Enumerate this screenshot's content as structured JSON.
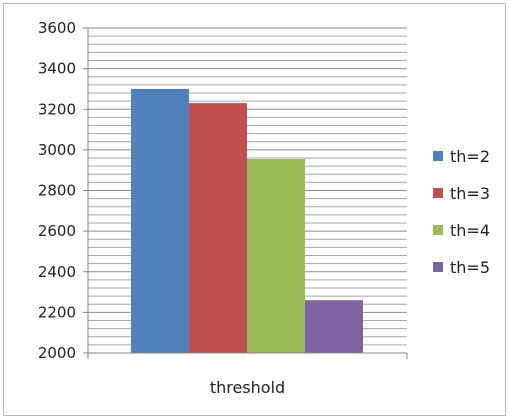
{
  "chart_data": {
    "type": "bar",
    "categories": [
      "threshold"
    ],
    "series": [
      {
        "name": "th=2",
        "values": [
          3300
        ],
        "color": "#4F81BD"
      },
      {
        "name": "th=3",
        "values": [
          3230
        ],
        "color": "#C0504D"
      },
      {
        "name": "th=4",
        "values": [
          2955
        ],
        "color": "#9BBB59"
      },
      {
        "name": "th=5",
        "values": [
          2260
        ],
        "color": "#8064A2"
      }
    ],
    "xlabel": "threshold",
    "ylabel": "",
    "ylim": [
      2000,
      3600
    ],
    "yticks": [
      2000,
      2200,
      2400,
      2600,
      2800,
      3000,
      3200,
      3400,
      3600
    ],
    "minor_grid_step": 40,
    "grid": true,
    "legend": "right"
  }
}
